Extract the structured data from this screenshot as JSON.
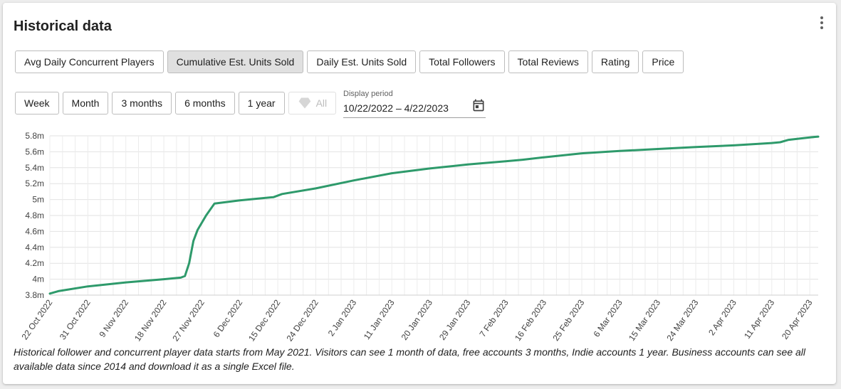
{
  "card": {
    "title": "Historical data"
  },
  "metric_tabs": [
    {
      "label": "Avg Daily Concurrent Players",
      "active": false
    },
    {
      "label": "Cumulative Est. Units Sold",
      "active": true
    },
    {
      "label": "Daily Est. Units Sold",
      "active": false
    },
    {
      "label": "Total Followers",
      "active": false
    },
    {
      "label": "Total Reviews",
      "active": false
    },
    {
      "label": "Rating",
      "active": false
    },
    {
      "label": "Price",
      "active": false
    }
  ],
  "period_buttons": [
    {
      "label": "Week"
    },
    {
      "label": "Month"
    },
    {
      "label": "3 months"
    },
    {
      "label": "6 months"
    },
    {
      "label": "1 year"
    },
    {
      "label": "All",
      "disabled": true,
      "icon": "gem-icon"
    }
  ],
  "display_period": {
    "label": "Display period",
    "value": "10/22/2022 – 4/22/2023"
  },
  "footnote": "Historical follower and concurrent player data starts from May 2021. Visitors can see 1 month of data, free accounts 3 months, Indie accounts 1 year. Business accounts can see all available data since 2014 and download it as a single Excel file.",
  "chart_data": {
    "type": "line",
    "title": "",
    "xlabel": "",
    "ylabel": "",
    "grid": true,
    "line_color": "#2e9a6b",
    "y_ticks": [
      "3.8m",
      "4m",
      "4.2m",
      "4.4m",
      "4.6m",
      "4.8m",
      "5m",
      "5.2m",
      "5.4m",
      "5.6m",
      "5.8m"
    ],
    "ylim": [
      3.8,
      5.8
    ],
    "x_ticks": [
      "22 Oct 2022",
      "31 Oct 2022",
      "9 Nov 2022",
      "18 Nov 2022",
      "27 Nov 2022",
      "6 Dec 2022",
      "15 Dec 2022",
      "24 Dec 2022",
      "2 Jan 2023",
      "11 Jan 2023",
      "20 Jan 2023",
      "29 Jan 2023",
      "7 Feb 2023",
      "16 Feb 2023",
      "25 Feb 2023",
      "6 Mar 2023",
      "15 Mar 2023",
      "24 Mar 2023",
      "2 Apr 2023",
      "11 Apr 2023",
      "20 Apr 2023"
    ],
    "xlim": [
      "2022-10-22",
      "2023-04-22"
    ],
    "series": [
      {
        "x": [
          "2022-10-22",
          "2022-10-24",
          "2022-10-31",
          "2022-11-09",
          "2022-11-18",
          "2022-11-22",
          "2022-11-23",
          "2022-11-24",
          "2022-11-25",
          "2022-11-26",
          "2022-11-28",
          "2022-11-30",
          "2022-12-06",
          "2022-12-14",
          "2022-12-16",
          "2022-12-24",
          "2023-01-02",
          "2023-01-11",
          "2023-01-20",
          "2023-01-29",
          "2023-02-07",
          "2023-02-11",
          "2023-02-16",
          "2023-02-25",
          "2023-03-06",
          "2023-03-15",
          "2023-03-24",
          "2023-04-02",
          "2023-04-11",
          "2023-04-13",
          "2023-04-15",
          "2023-04-20",
          "2023-04-22"
        ],
        "y": [
          3.82,
          3.85,
          3.91,
          3.96,
          4.0,
          4.02,
          4.04,
          4.2,
          4.48,
          4.62,
          4.8,
          4.95,
          4.99,
          5.03,
          5.07,
          5.14,
          5.24,
          5.33,
          5.39,
          5.44,
          5.48,
          5.5,
          5.53,
          5.58,
          5.61,
          5.635,
          5.66,
          5.68,
          5.71,
          5.72,
          5.75,
          5.78,
          5.79
        ]
      }
    ]
  }
}
